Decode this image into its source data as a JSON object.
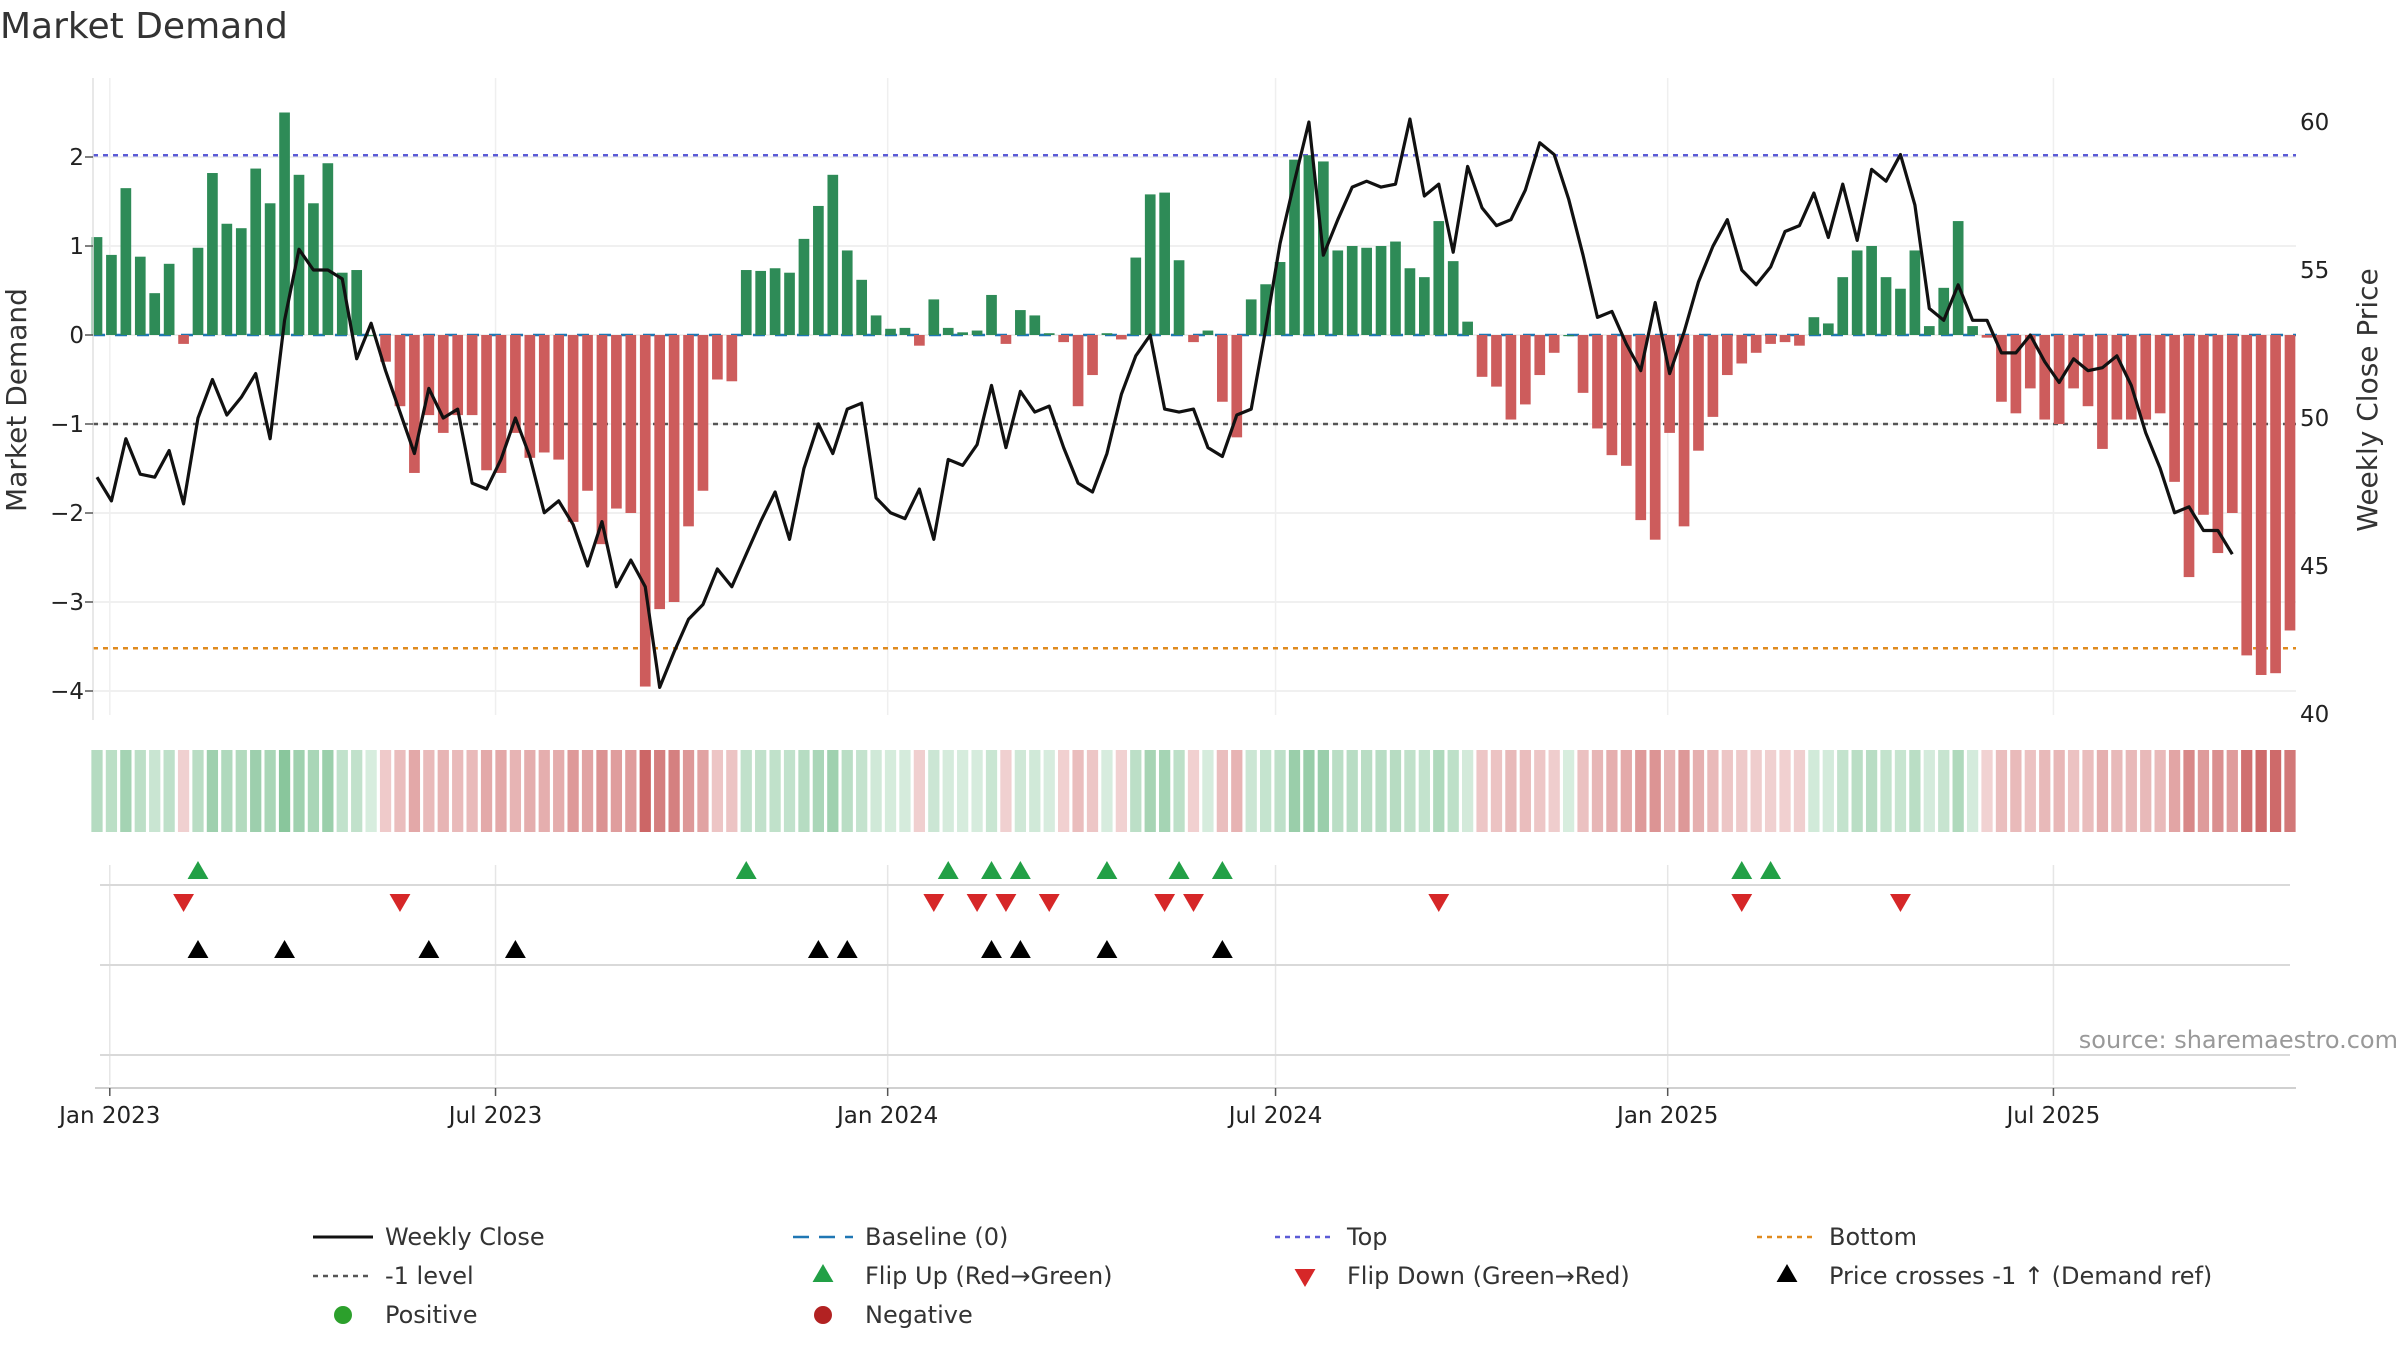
{
  "chart_data": {
    "type": "bar",
    "title": "Market Demand",
    "ylabel_left": "Market Demand",
    "ylabel_right": "Weekly Close Price",
    "ylim_left": [
      -4.3,
      2.8
    ],
    "ylim_right": [
      40,
      61.5
    ],
    "yticks_left": [
      "2",
      "1",
      "0",
      "−1",
      "−2",
      "−3",
      "−4"
    ],
    "yticks_right": [
      "60",
      "55",
      "50",
      "45",
      "40"
    ],
    "x_start": "2022-12-26",
    "x_end": "2025-10-20",
    "xtick_labels": [
      {
        "date": "2023-01-01",
        "label": "Jan 2023"
      },
      {
        "date": "2023-07-01",
        "label": "Jul 2023"
      },
      {
        "date": "2024-01-01",
        "label": "Jan 2024"
      },
      {
        "date": "2024-07-01",
        "label": "Jul 2024"
      },
      {
        "date": "2025-01-01",
        "label": "Jan 2025"
      },
      {
        "date": "2025-07-01",
        "label": "Jul 2025"
      }
    ],
    "reference_lines": {
      "top": 2.02,
      "bottom": -3.52,
      "minus_one": -1.0,
      "baseline": 0
    },
    "demand_values": [
      1.1,
      0.9,
      1.65,
      0.88,
      0.47,
      0.8,
      -0.1,
      0.98,
      1.82,
      1.25,
      1.2,
      1.87,
      1.48,
      2.5,
      1.8,
      1.48,
      1.93,
      0.7,
      0.73,
      0,
      -0.3,
      -0.8,
      -1.55,
      -0.9,
      -1.1,
      -0.9,
      -0.9,
      -1.52,
      -1.55,
      -1.1,
      -1.38,
      -1.32,
      -1.4,
      -2.1,
      -1.75,
      -2.35,
      -1.95,
      -2.0,
      -3.95,
      -3.08,
      -3.0,
      -2.15,
      -1.75,
      -0.5,
      -0.52,
      0.73,
      0.72,
      0.75,
      0.7,
      1.08,
      1.45,
      1.8,
      0.95,
      0.62,
      0.22,
      0.07,
      0.08,
      -0.12,
      0.4,
      0.08,
      0.03,
      0.05,
      0.45,
      -0.1,
      0.28,
      0.22,
      0.02,
      -0.08,
      -0.8,
      -0.45,
      0.02,
      -0.05,
      0.87,
      1.58,
      1.6,
      0.84,
      -0.08,
      0.05,
      -0.75,
      -1.15,
      0.4,
      0.57,
      0.82,
      1.97,
      2.02,
      1.95,
      0.95,
      1.0,
      0.98,
      1.0,
      1.05,
      0.75,
      0.65,
      1.28,
      0.83,
      0.15,
      -0.47,
      -0.58,
      -0.95,
      -0.78,
      -0.45,
      -0.2,
      0,
      -0.65,
      -1.05,
      -1.35,
      -1.47,
      -2.08,
      -2.3,
      -1.1,
      -2.15,
      -1.3,
      -0.92,
      -0.45,
      -0.32,
      -0.2,
      -0.1,
      -0.08,
      -0.12,
      0.2,
      0.13,
      0.65,
      0.95,
      1.0,
      0.65,
      0.52,
      0.95,
      0.1,
      0.53,
      1.28,
      0.1,
      -0.03,
      -0.75,
      -0.88,
      -0.6,
      -0.95,
      -1.0,
      -0.6,
      -0.8,
      -1.28,
      -0.95,
      -0.95,
      -0.95,
      -0.88,
      -1.65,
      -2.72,
      -2.02,
      -2.45,
      -2.0,
      -3.6,
      -3.82,
      -3.8,
      -3.32
    ],
    "close_prices": [
      48.0,
      47.2,
      49.3,
      48.1,
      48.0,
      48.9,
      47.1,
      50.0,
      51.3,
      50.1,
      50.7,
      51.5,
      49.3,
      53.3,
      55.7,
      55.0,
      55.0,
      54.7,
      52.0,
      53.2,
      51.6,
      50.2,
      48.8,
      51.0,
      50.0,
      50.3,
      47.8,
      47.6,
      48.6,
      50.0,
      48.7,
      46.8,
      47.2,
      46.4,
      45.0,
      46.5,
      44.3,
      45.2,
      44.3,
      40.9,
      42.1,
      43.2,
      43.7,
      44.9,
      44.3,
      45.4,
      46.5,
      47.5,
      45.9,
      48.3,
      49.8,
      48.8,
      50.3,
      50.5,
      47.3,
      46.8,
      46.6,
      47.6,
      45.9,
      48.6,
      48.4,
      49.1,
      51.1,
      49.0,
      50.9,
      50.2,
      50.4,
      49.0,
      47.8,
      47.5,
      48.8,
      50.8,
      52.1,
      52.8,
      50.3,
      50.2,
      50.3,
      49.0,
      48.7,
      50.1,
      50.3,
      53.0,
      55.9,
      58.0,
      60.0,
      55.5,
      56.7,
      57.8,
      58.0,
      57.8,
      57.9,
      60.1,
      57.5,
      57.9,
      55.6,
      58.5,
      57.1,
      56.5,
      56.7,
      57.7,
      59.3,
      58.9,
      57.4,
      55.5,
      53.4,
      53.6,
      52.5,
      51.6,
      53.9,
      51.5,
      52.9,
      54.6,
      55.8,
      56.7,
      55.0,
      54.5,
      55.1,
      56.3,
      56.5,
      57.6,
      56.1,
      57.9,
      56.0,
      58.4,
      58.0,
      58.9,
      57.2,
      53.7,
      53.3,
      54.5,
      53.3,
      53.3,
      52.2,
      52.2,
      52.8,
      51.9,
      51.2,
      52.0,
      51.6,
      51.7,
      52.1,
      51.1,
      49.5,
      48.3,
      46.8,
      47.0,
      46.2,
      46.2,
      45.4
    ],
    "flip_up_weeks": [
      7,
      45,
      59,
      62,
      64,
      70,
      75,
      78,
      114,
      116
    ],
    "flip_down_weeks": [
      6,
      21,
      58,
      61,
      63,
      66,
      74,
      76,
      93,
      114,
      125
    ],
    "price_cross_weeks": [
      7,
      13,
      23,
      29,
      50,
      52,
      62,
      64,
      70,
      78
    ],
    "colors": {
      "positive_bar": "#2e8b57",
      "negative_bar": "#cd5c5c",
      "close_line": "#111111",
      "baseline": "#1f77b4",
      "top_line": "#5b5bd6",
      "minus_one_line": "#555555",
      "bottom_line": "#e08a1e",
      "flip_up": "#22a046",
      "flip_down": "#d62728",
      "price_cross": "#000000",
      "positive_dot": "#2ca02c",
      "negative_dot": "#b22222"
    },
    "source": "source: sharemaestro.com",
    "legend": [
      {
        "label": "Weekly Close",
        "marker": "line"
      },
      {
        "label": "Baseline (0)",
        "marker": "dashed-blue"
      },
      {
        "label": "Top",
        "marker": "dotted-purple"
      },
      {
        "label": "Bottom",
        "marker": "dotted-orange"
      },
      {
        "label": "-1 level",
        "marker": "dotted-gray"
      },
      {
        "label": "Flip Up (Red→Green)",
        "marker": "triangle-up-green"
      },
      {
        "label": "Flip Down (Green→Red)",
        "marker": "triangle-down-red"
      },
      {
        "label": "Price crosses -1 ↑ (Demand ref)",
        "marker": "triangle-up-black"
      },
      {
        "label": "Positive",
        "marker": "dot-green"
      },
      {
        "label": "Negative",
        "marker": "dot-red"
      }
    ]
  }
}
